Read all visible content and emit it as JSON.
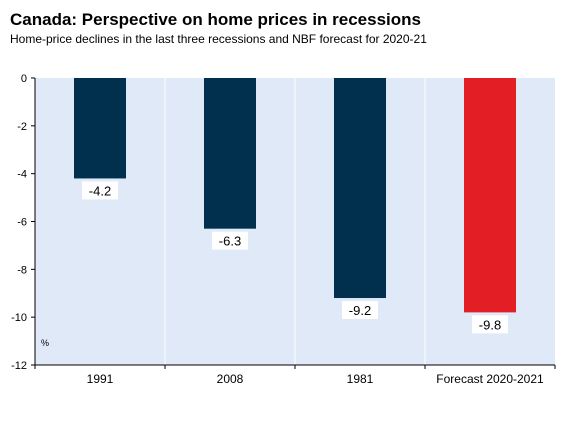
{
  "chart_data": {
    "type": "bar",
    "title": "Canada: Perspective on home prices in recessions",
    "subtitle": "Home-price declines in the last three recessions and NBF forecast for 2020-21",
    "categories": [
      "1991",
      "2008",
      "1981",
      "Forecast 2020-2021"
    ],
    "values": [
      -4.2,
      -6.3,
      -9.2,
      -9.8
    ],
    "value_labels": [
      "-4.2",
      "-6.3",
      "-9.2",
      "-9.8"
    ],
    "bar_colors": [
      "#00304d",
      "#00304d",
      "#00304d",
      "#e31e24"
    ],
    "unit_label": "%",
    "ylim": [
      -12,
      0
    ],
    "yticks": [
      0,
      -2,
      -4,
      -6,
      -8,
      -10,
      -12
    ],
    "ytick_labels": [
      "0",
      "-2",
      "-4",
      "-6",
      "-8",
      "-10",
      "-12"
    ],
    "plot_background": "#dfe9f7",
    "grid": true,
    "legend": "none"
  }
}
